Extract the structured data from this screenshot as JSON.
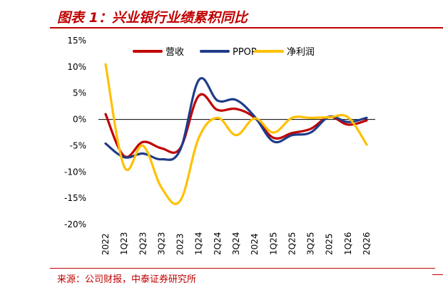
{
  "header": {
    "title": "图表 1：兴业银行业绩累积同比"
  },
  "footer": {
    "source": "来源：公司财报，中泰证券研究所"
  },
  "chart_data": {
    "type": "line",
    "categories": [
      "2022",
      "1Q23",
      "2Q23",
      "3Q23",
      "2023",
      "1Q24",
      "2Q24",
      "3Q24",
      "2024",
      "1Q25",
      "2Q25",
      "3Q25",
      "2025",
      "1Q26",
      "2Q26"
    ],
    "ylim": [
      -20,
      15
    ],
    "yticks": [
      15,
      10,
      5,
      0,
      -5,
      -10,
      -15,
      -20
    ],
    "ytick_labels": [
      "15%",
      "10%",
      "5%",
      "0%",
      "-5%",
      "-10%",
      "-15%",
      "-20%"
    ],
    "legend_position": "top-center",
    "grid": false,
    "series": [
      {
        "name": "营收",
        "color": "#c00000",
        "values": [
          1.0,
          -7.0,
          -4.3,
          -5.5,
          -5.5,
          4.5,
          1.8,
          2.0,
          0.3,
          -3.5,
          -2.6,
          -1.8,
          0.5,
          -1.0,
          -0.2
        ]
      },
      {
        "name": "PPOP",
        "color": "#1f3c88",
        "values": [
          -4.6,
          -7.2,
          -6.5,
          -7.6,
          -5.8,
          7.5,
          3.6,
          3.7,
          0.5,
          -4.2,
          -3.0,
          -2.5,
          0.5,
          -0.5,
          0.3
        ]
      },
      {
        "name": "净利润",
        "color": "#ffc000",
        "values": [
          10.5,
          -9.0,
          -5.0,
          -13.0,
          -15.5,
          -3.5,
          0.3,
          -3.0,
          0.2,
          -2.5,
          0.3,
          0.3,
          0.4,
          0.4,
          -4.8
        ]
      }
    ]
  }
}
